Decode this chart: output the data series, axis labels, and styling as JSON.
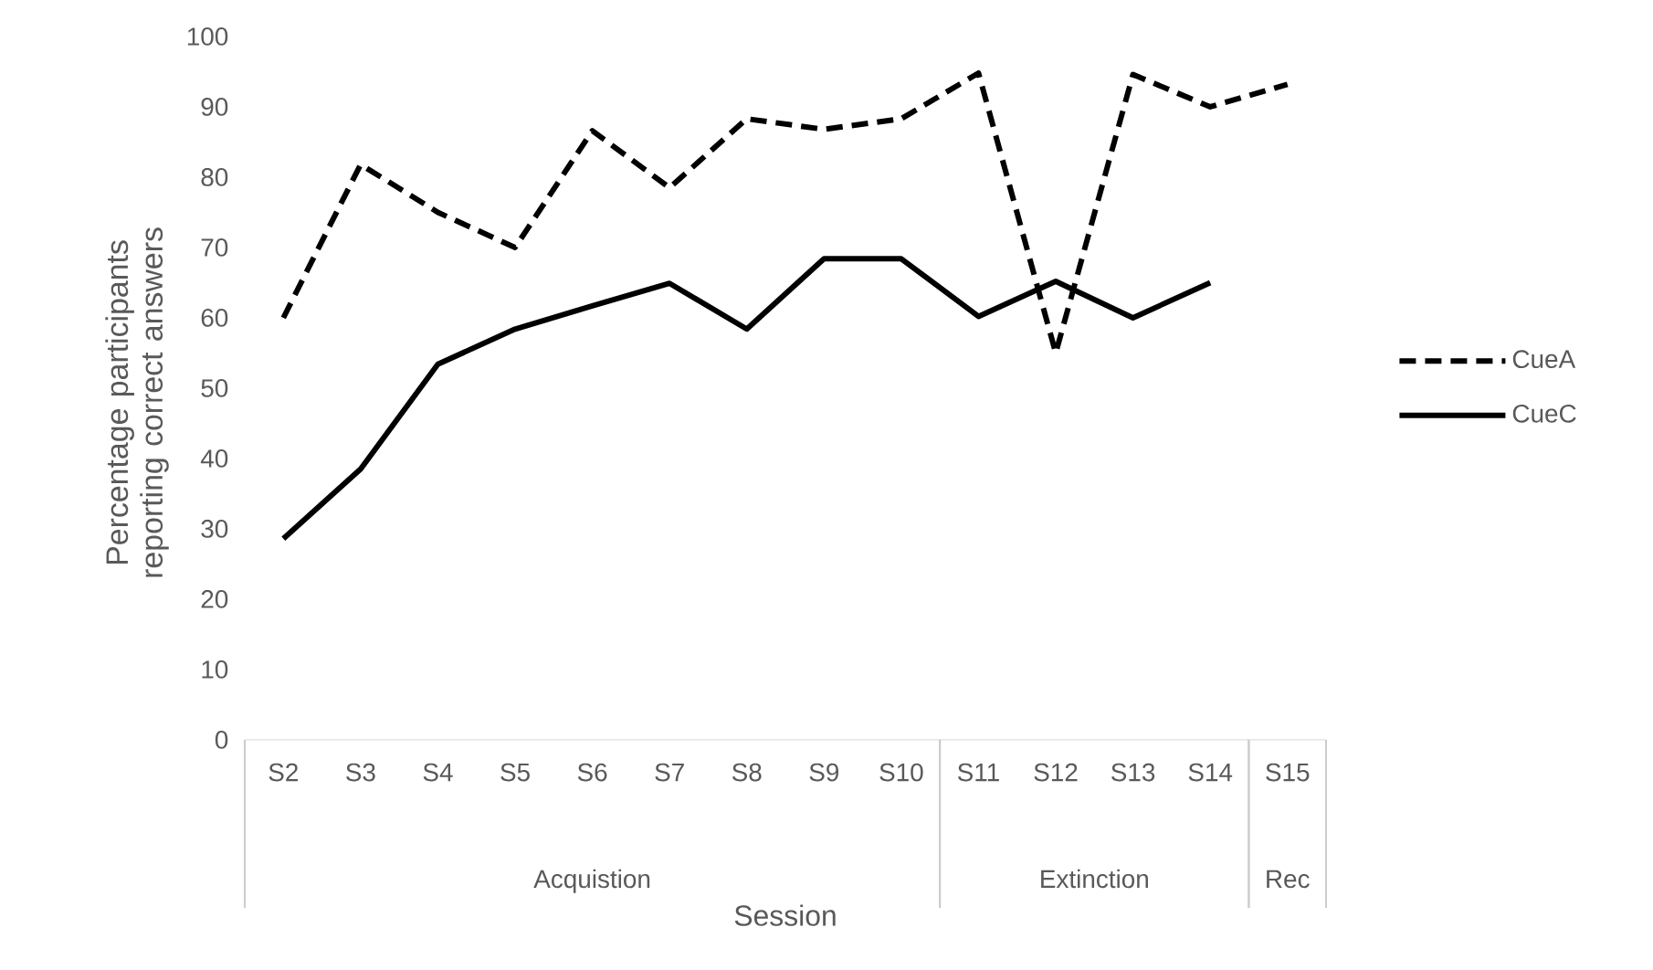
{
  "chart_data": {
    "type": "line",
    "xlabel": "Session",
    "ylabel": "Percentage participants reporting correct answers",
    "categories": [
      "S2",
      "S3",
      "S4",
      "S5",
      "S6",
      "S7",
      "S8",
      "S9",
      "S10",
      "S11",
      "S12",
      "S13",
      "S14",
      "S15"
    ],
    "series": [
      {
        "name": "CueA",
        "color": "#000000",
        "line_style": "dashed",
        "values": [
          60,
          81.8,
          75,
          70,
          86.6,
          78.5,
          88.3,
          86.8,
          88.3,
          94.8,
          55,
          94.6,
          90,
          93.2
        ]
      },
      {
        "name": "CueC",
        "color": "#000000",
        "line_style": "solid",
        "values": [
          28.6,
          38.5,
          53.4,
          58.4,
          61.7,
          64.9,
          58.4,
          68.4,
          68.4,
          60.2,
          65.2,
          60,
          65,
          null
        ]
      }
    ],
    "annotations": [
      "Acquistion",
      "Extinction",
      "Rec"
    ],
    "ylim": [
      0,
      100
    ],
    "yticks": [
      0,
      10,
      20,
      30,
      40,
      50,
      60,
      70,
      80,
      90,
      100
    ],
    "grid": false,
    "legend": "right",
    "marker": "none"
  }
}
